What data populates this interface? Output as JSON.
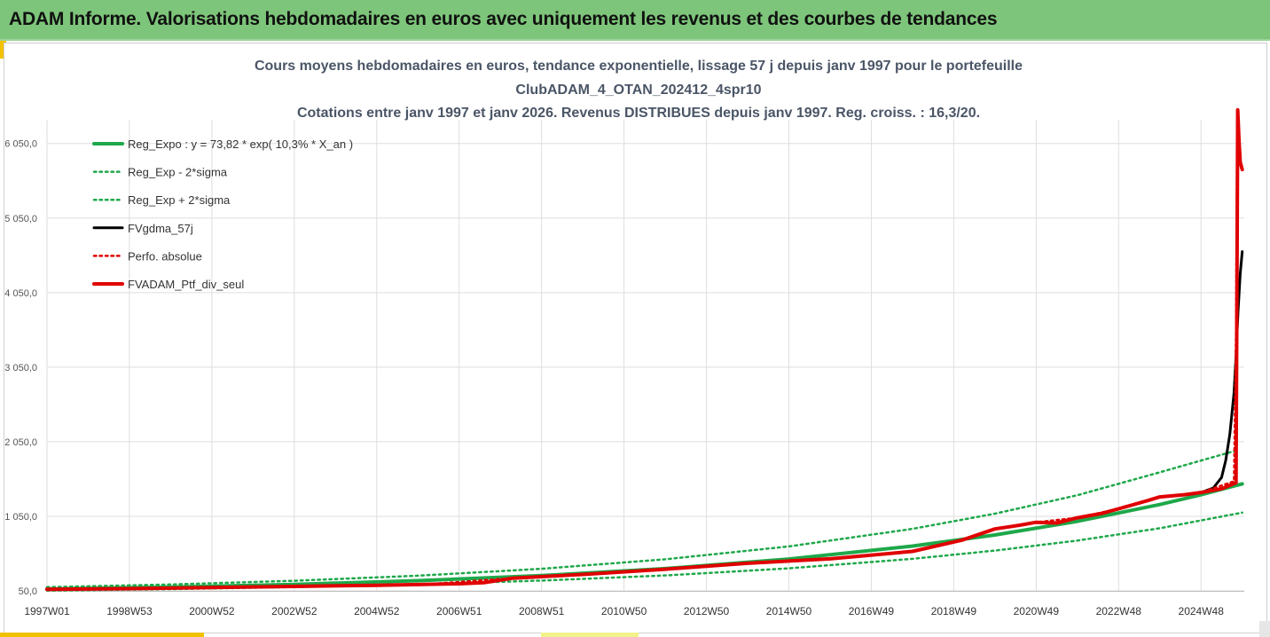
{
  "banner": {
    "title": "ADAM Informe. Valorisations hebdomadaires en euros avec uniquement les revenus et des courbes de tendances"
  },
  "colors": {
    "banner_bg": "#7dc57a",
    "reg_expo": "#1ea84a",
    "reg_band": "#1ea84a",
    "fvgdma": "#000000",
    "perfo": "#e00000",
    "fvadam": "#e00000",
    "gridline": "#dedede",
    "accent_yellow": "#f2c100"
  },
  "chart_data": {
    "type": "line",
    "title_lines": [
      "Cours moyens hebdomadaires  en euros, tendance exponentielle, lissage 57 j depuis janv 1997 pour le portefeuille",
      "ClubADAM_4_OTAN_202412_4spr10",
      "Cotations entre janv 1997 et janv 2026. Revenus DISTRIBUES depuis janv 1997. Reg. croiss. : 16,3/20."
    ],
    "xlabel": "",
    "ylabel": "",
    "ylim": [
      50,
      6550
    ],
    "xlim": [
      1997.0,
      2026.05
    ],
    "y_ticks": [
      50,
      1050,
      2050,
      3050,
      4050,
      5050,
      6050
    ],
    "y_tick_labels": [
      "50,0",
      "1 050,0",
      "2 050,0",
      "3 050,0",
      "4 050,0",
      "5 050,0",
      "6 050,0"
    ],
    "x_ticks": [
      1997.0,
      1999.0,
      2001.0,
      2003.0,
      2005.0,
      2007.0,
      2009.0,
      2011.0,
      2013.0,
      2015.0,
      2017.0,
      2019.0,
      2021.0,
      2023.0,
      2025.0
    ],
    "x_tick_labels": [
      "1997W01",
      "1998W53",
      "2000W52",
      "2002W52",
      "2004W52",
      "2006W51",
      "2008W51",
      "2010W50",
      "2012W50",
      "2014W50",
      "2016W49",
      "2018W49",
      "2020W49",
      "2022W48",
      "2024W48"
    ],
    "grid": true,
    "legend_position": "top-left",
    "series": [
      {
        "name": "Reg_Expo : y = 73,82 * exp( 10,3% *  X_an )",
        "style": "solid-thick",
        "color": "#1ea84a",
        "x": [
          1997,
          2000,
          2003,
          2006,
          2009,
          2012,
          2015,
          2018,
          2020,
          2022,
          2024,
          2025,
          2026
        ],
        "y": [
          74,
          100,
          137,
          187,
          255,
          349,
          477,
          651,
          800,
          983,
          1208,
          1339,
          1485
        ]
      },
      {
        "name": "Reg_Exp - 2*sigma",
        "style": "dotted",
        "color": "#1ea84a",
        "x": [
          1997,
          2000,
          2003,
          2006,
          2009,
          2012,
          2015,
          2018,
          2020,
          2022,
          2024,
          2026
        ],
        "y": [
          54,
          74,
          101,
          138,
          188,
          257,
          352,
          480,
          590,
          725,
          890,
          1100
        ]
      },
      {
        "name": "Reg_Exp + 2*sigma",
        "style": "dotted",
        "color": "#1ea84a",
        "x": [
          1997,
          2000,
          2003,
          2006,
          2009,
          2012,
          2015,
          2018,
          2020,
          2022,
          2024,
          2025.9
        ],
        "y": [
          100,
          136,
          186,
          254,
          346,
          473,
          646,
          882,
          1085,
          1333,
          1640,
          1940
        ]
      },
      {
        "name": "FVgdma_57j",
        "style": "solid",
        "color": "#000000",
        "x": [
          1997,
          1999,
          2001,
          2003,
          2005,
          2007,
          2007.6,
          2008.3,
          2010,
          2012,
          2014,
          2016,
          2018,
          2019.2,
          2020,
          2020.6,
          2021,
          2021.5,
          2022,
          2022.6,
          2023,
          2023.7,
          2024,
          2024.6,
          2025,
          2025.3,
          2025.5,
          2025.6,
          2025.7,
          2025.8,
          2025.85,
          2025.9,
          2025.95,
          2026.0
        ],
        "y": [
          70,
          80,
          95,
          110,
          125,
          145,
          160,
          220,
          270,
          340,
          420,
          480,
          580,
          730,
          880,
          930,
          970,
          960,
          1030,
          1090,
          1150,
          1260,
          1310,
          1340,
          1370,
          1430,
          1570,
          1800,
          2150,
          2700,
          3200,
          3800,
          4300,
          4600
        ]
      },
      {
        "name": "Perfo. absolue",
        "style": "dotted",
        "color": "#e00000",
        "x": [
          1997,
          2000,
          2003,
          2006,
          2008,
          2010,
          2012,
          2014,
          2016,
          2018,
          2019.2,
          2020,
          2021,
          2022,
          2023,
          2024,
          2025,
          2025.8,
          2025.85,
          2025.88,
          2025.95,
          2026.0
        ],
        "y": [
          72,
          88,
          105,
          130,
          210,
          270,
          340,
          420,
          480,
          580,
          730,
          880,
          970,
          1030,
          1150,
          1310,
          1370,
          1520,
          3500,
          6500,
          5750,
          5700
        ]
      },
      {
        "name": "FVADAM_Ptf_div_seul",
        "style": "solid-thick",
        "color": "#e00000",
        "x": [
          1997,
          1999,
          2001,
          2003,
          2005,
          2007,
          2007.6,
          2008.3,
          2010,
          2012,
          2014,
          2016,
          2018,
          2019.2,
          2020,
          2020.6,
          2021,
          2021.5,
          2022,
          2022.6,
          2023,
          2023.7,
          2024,
          2024.6,
          2025,
          2025.5,
          2025.8,
          2025.85,
          2025.87,
          2025.89,
          2025.92,
          2025.95,
          2026.0
        ],
        "y": [
          70,
          80,
          95,
          110,
          125,
          145,
          160,
          220,
          270,
          340,
          420,
          480,
          580,
          730,
          880,
          930,
          970,
          960,
          1030,
          1090,
          1150,
          1260,
          1310,
          1340,
          1370,
          1420,
          1490,
          1500,
          3800,
          6500,
          6100,
          5800,
          5700
        ]
      }
    ]
  }
}
